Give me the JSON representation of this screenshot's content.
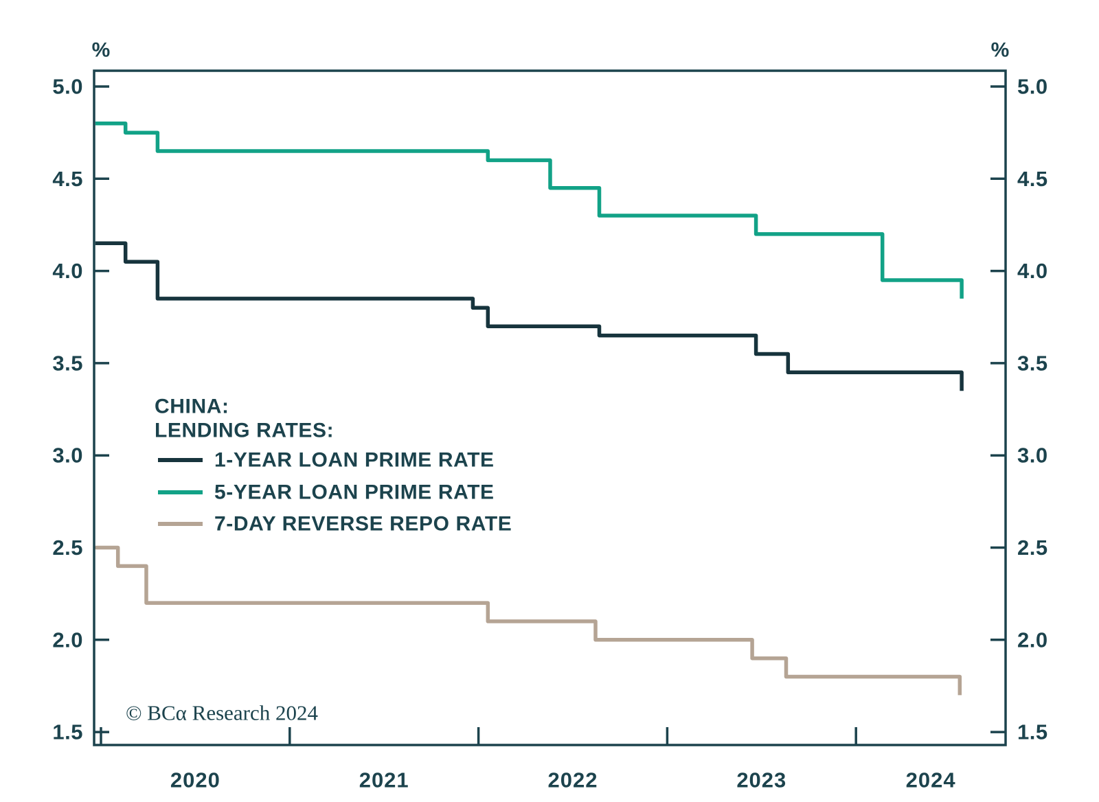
{
  "chart_data": {
    "type": "line",
    "step": true,
    "grid": false,
    "background": "#ffffff",
    "legend": {
      "position": "center-left",
      "title_lines": [
        "CHINA:",
        "LENDING RATES:"
      ]
    },
    "y_axis": {
      "unit": "%",
      "range": [
        1.5,
        5.0
      ],
      "ticks": [
        5.0,
        4.5,
        4.0,
        3.5,
        3.0,
        2.5,
        2.0,
        1.5
      ],
      "tick_labels": [
        "5.0",
        "4.5",
        "4.0",
        "3.5",
        "3.0",
        "2.5",
        "2.0",
        "1.5"
      ],
      "mirrored_right": true
    },
    "x_axis": {
      "range_years": [
        2019.97,
        2024.79
      ],
      "tick_years": [
        2020,
        2021,
        2022,
        2023,
        2024
      ],
      "tick_labels": [
        "2020",
        "2021",
        "2022",
        "2023",
        "2024"
      ]
    },
    "series": [
      {
        "name": "1-YEAR LOAN PRIME RATE",
        "color": "#17343d",
        "points": [
          [
            2019.97,
            4.15
          ],
          [
            2020.13,
            4.05
          ],
          [
            2020.3,
            3.85
          ],
          [
            2021.97,
            3.8
          ],
          [
            2022.05,
            3.7
          ],
          [
            2022.64,
            3.65
          ],
          [
            2023.47,
            3.55
          ],
          [
            2023.64,
            3.45
          ],
          [
            2024.56,
            3.35
          ]
        ]
      },
      {
        "name": "5-YEAR LOAN PRIME RATE",
        "color": "#12a287",
        "points": [
          [
            2019.97,
            4.8
          ],
          [
            2020.13,
            4.75
          ],
          [
            2020.3,
            4.65
          ],
          [
            2022.05,
            4.6
          ],
          [
            2022.38,
            4.45
          ],
          [
            2022.64,
            4.3
          ],
          [
            2023.47,
            4.2
          ],
          [
            2024.14,
            3.95
          ],
          [
            2024.56,
            3.85
          ]
        ]
      },
      {
        "name": "7-DAY REVERSE REPO RATE",
        "color": "#b5a494",
        "points": [
          [
            2019.97,
            2.5
          ],
          [
            2020.09,
            2.4
          ],
          [
            2020.24,
            2.2
          ],
          [
            2022.05,
            2.1
          ],
          [
            2022.62,
            2.0
          ],
          [
            2023.45,
            1.9
          ],
          [
            2023.63,
            1.8
          ],
          [
            2024.55,
            1.7
          ]
        ]
      }
    ]
  },
  "footer": {
    "copyright": "© BCα Research 2024"
  },
  "colors": {
    "axis": "#1c434d",
    "text": "#1c434d",
    "series_1y": "#17343d",
    "series_5y": "#12a287",
    "series_repo": "#b5a494",
    "background": "#ffffff"
  }
}
